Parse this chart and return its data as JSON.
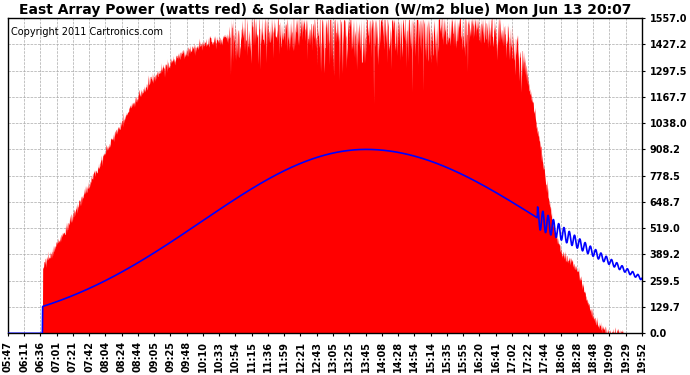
{
  "title": "East Array Power (watts red) & Solar Radiation (W/m2 blue) Mon Jun 13 20:07",
  "copyright": "Copyright 2011 Cartronics.com",
  "background_color": "#ffffff",
  "plot_bg_color": "#ffffff",
  "grid_color": "#aaaaaa",
  "red_color": "#ff0000",
  "blue_color": "#0000ff",
  "yticks": [
    0.0,
    129.7,
    259.5,
    389.2,
    519.0,
    648.7,
    778.5,
    908.2,
    1038.0,
    1167.7,
    1297.5,
    1427.2,
    1557.0
  ],
  "ymax": 1557.0,
  "xtick_labels": [
    "05:47",
    "06:11",
    "06:36",
    "07:01",
    "07:21",
    "07:42",
    "08:04",
    "08:24",
    "08:44",
    "09:05",
    "09:25",
    "09:48",
    "10:10",
    "10:33",
    "10:54",
    "11:15",
    "11:36",
    "11:59",
    "12:21",
    "12:43",
    "13:05",
    "13:25",
    "13:45",
    "14:08",
    "14:28",
    "14:54",
    "15:14",
    "15:35",
    "15:55",
    "16:20",
    "16:41",
    "17:02",
    "17:22",
    "17:44",
    "18:06",
    "18:28",
    "18:48",
    "19:09",
    "19:29",
    "19:52"
  ],
  "n_ticks": 40,
  "n_points": 2000,
  "title_fontsize": 10,
  "tick_fontsize": 7,
  "copyright_fontsize": 7
}
